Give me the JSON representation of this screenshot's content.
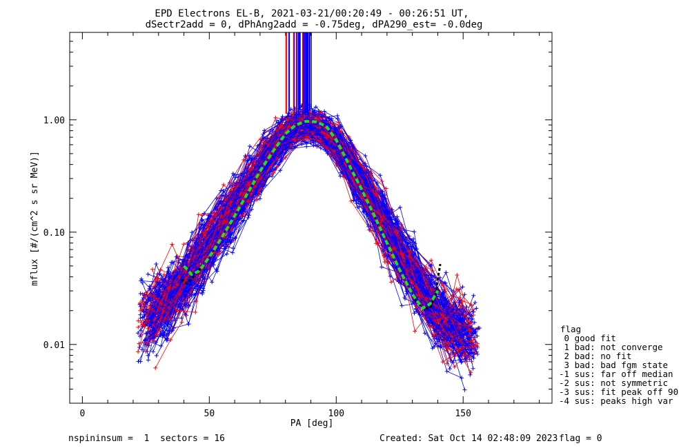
{
  "title_line1": "EPD Electrons EL-B, 2021-03-21/00:20:49 - 00:26:51 UT,",
  "title_line2": "dSectr2add = 0, dPhAng2add = -0.75deg, dPA290_est=  -0.0deg",
  "xlabel": "PA [deg]",
  "ylabel": "mflux [#/(cm^2 s sr MeV)]",
  "xticks": [
    {
      "value": 0,
      "label": "0"
    },
    {
      "value": 50,
      "label": "50"
    },
    {
      "value": 100,
      "label": "100"
    },
    {
      "value": 150,
      "label": "150"
    }
  ],
  "yticks": [
    {
      "value": 0.01,
      "label": "0.01"
    },
    {
      "value": 0.1,
      "label": "0.10"
    },
    {
      "value": 1.0,
      "label": "1.00"
    }
  ],
  "legend": {
    "title": "flag",
    "items": [
      " 0 good fit",
      " 1 bad: not converge",
      " 2 bad: no fit",
      " 3 bad: bad fgm state",
      "-1 sus: far off median",
      "-2 sus: not symmetric",
      "-3 sus: fit peak off 90",
      "-4 sus: peaks high var"
    ]
  },
  "footer": {
    "left": "nspininsum =  1  sectors = 16",
    "created": "Created: Sat Oct 14 02:48:09 2023",
    "flag": "flag = 0"
  },
  "colors": {
    "series_a": "#ff0000",
    "series_b": "#0000ff",
    "fit": "#22dd22",
    "median": "#000000"
  },
  "chart_data": {
    "type": "line",
    "xlim": [
      -5,
      185
    ],
    "ylim": [
      0.003,
      6.0
    ],
    "yscale": "log",
    "grid": false,
    "legend_position": "right",
    "series": [
      {
        "x": [
          26,
          32,
          38,
          44,
          50,
          56,
          62,
          68,
          74,
          80,
          86,
          92,
          98,
          104,
          110,
          116,
          122,
          128,
          134,
          140,
          146,
          152
        ],
        "y": [
          0.02,
          0.025,
          0.033,
          0.05,
          0.085,
          0.13,
          0.2,
          0.33,
          0.52,
          0.74,
          0.9,
          0.86,
          0.7,
          0.45,
          0.27,
          0.16,
          0.09,
          0.05,
          0.03,
          0.02,
          0.015,
          0.012
        ]
      },
      {
        "x": [
          26,
          32,
          38,
          44,
          50,
          56,
          62,
          68,
          74,
          80,
          86,
          92,
          98,
          104,
          110,
          116,
          122,
          128,
          134,
          140,
          146,
          152
        ],
        "y": [
          0.015,
          0.02,
          0.03,
          0.045,
          0.075,
          0.12,
          0.19,
          0.3,
          0.5,
          0.72,
          0.88,
          0.85,
          0.68,
          0.43,
          0.26,
          0.15,
          0.085,
          0.048,
          0.028,
          0.018,
          0.013,
          0.011
        ]
      },
      {
        "x": [
          40,
          43,
          46,
          50,
          55,
          60,
          65,
          70,
          75,
          80,
          84,
          88,
          92,
          96,
          100,
          105,
          110,
          115,
          120,
          125,
          130,
          134,
          137,
          140
        ],
        "y": [
          0.05,
          0.042,
          0.045,
          0.06,
          0.09,
          0.14,
          0.22,
          0.35,
          0.52,
          0.75,
          0.9,
          0.97,
          0.96,
          0.88,
          0.66,
          0.4,
          0.24,
          0.14,
          0.08,
          0.046,
          0.028,
          0.021,
          0.023,
          0.03
        ]
      },
      {
        "x": [
          39,
          41,
          43,
          45,
          48
        ],
        "y": [
          0.038,
          0.035,
          0.038,
          0.044,
          0.052
        ]
      },
      {
        "x": [
          131,
          134,
          137,
          139,
          140,
          141
        ],
        "y": [
          0.025,
          0.021,
          0.021,
          0.027,
          0.038,
          0.052
        ]
      }
    ]
  }
}
